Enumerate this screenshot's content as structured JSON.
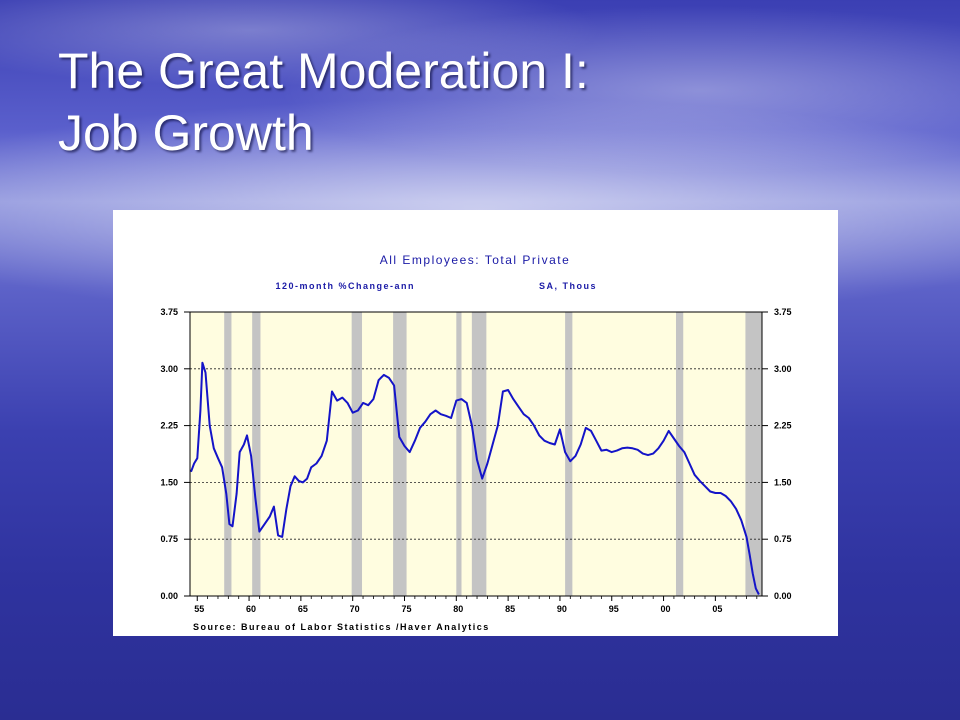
{
  "slide": {
    "title_line1": "The Great Moderation I:",
    "title_line2": "Job Growth"
  },
  "chart_data": {
    "type": "line",
    "title": "All Employees: Total Private",
    "subtitle_measure": "120-month %Change-ann",
    "subtitle_units": "SA, Thous",
    "source": "Source:  Bureau of Labor Statistics /Haver Analytics",
    "xlim": [
      1954.3,
      2009.5
    ],
    "ylim": [
      0.0,
      3.75
    ],
    "x_ticks": [
      "55",
      "60",
      "65",
      "70",
      "75",
      "80",
      "85",
      "90",
      "95",
      "00",
      "05"
    ],
    "x_tick_values": [
      1955,
      1960,
      1965,
      1970,
      1975,
      1980,
      1985,
      1990,
      1995,
      2000,
      2005
    ],
    "y_ticks_left": [
      "3.75",
      "3.00",
      "2.25",
      "1.50",
      "0.75",
      "0.00"
    ],
    "y_ticks_right": [
      "3.75",
      "3.00",
      "2.25",
      "1.50",
      "0.75",
      "0.00"
    ],
    "y_tick_values": [
      3.75,
      3.0,
      2.25,
      1.5,
      0.75,
      0.0
    ],
    "grid": "horizontal dashed at 0.75, 1.50, 2.25, 3.00",
    "colors": {
      "line": "#1414c8",
      "plot_background": "#fffde0",
      "recession": "#c4c4c4"
    },
    "recessions": [
      [
        1957.6,
        1958.3
      ],
      [
        1960.3,
        1961.1
      ],
      [
        1969.9,
        1970.9
      ],
      [
        1973.9,
        1975.2
      ],
      [
        1980.0,
        1980.5
      ],
      [
        1981.5,
        1982.9
      ],
      [
        1990.5,
        1991.2
      ],
      [
        2001.2,
        2001.9
      ],
      [
        2007.9,
        2009.5
      ]
    ],
    "series": [
      {
        "x": [
          1954.4,
          1954.7,
          1955.0,
          1955.3,
          1955.5,
          1955.8,
          1956.2,
          1956.6,
          1957.0,
          1957.4,
          1957.8,
          1958.1,
          1958.4,
          1958.8,
          1959.1,
          1959.5,
          1959.8,
          1960.2,
          1960.6,
          1961.0,
          1961.5,
          1962.0,
          1962.4,
          1962.8,
          1963.2,
          1963.6,
          1964.0,
          1964.4,
          1964.8,
          1965.2,
          1965.6,
          1966.0,
          1966.5,
          1967.0,
          1967.5,
          1968.0,
          1968.5,
          1969.0,
          1969.5,
          1970.0,
          1970.5,
          1971.0,
          1971.5,
          1972.0,
          1972.5,
          1973.0,
          1973.5,
          1974.0,
          1974.5,
          1975.0,
          1975.5,
          1976.0,
          1976.5,
          1977.0,
          1977.5,
          1978.0,
          1978.5,
          1979.0,
          1979.5,
          1980.0,
          1980.5,
          1981.0,
          1981.5,
          1982.0,
          1982.5,
          1983.0,
          1983.5,
          1984.0,
          1984.5,
          1985.0,
          1985.5,
          1986.0,
          1986.5,
          1987.0,
          1987.5,
          1988.0,
          1988.5,
          1989.0,
          1989.5,
          1990.0,
          1990.5,
          1991.0,
          1991.5,
          1992.0,
          1992.5,
          1993.0,
          1993.5,
          1994.0,
          1994.5,
          1995.0,
          1995.5,
          1996.0,
          1996.5,
          1997.0,
          1997.5,
          1998.0,
          1998.5,
          1999.0,
          1999.5,
          2000.0,
          2000.5,
          2001.0,
          2001.5,
          2002.0,
          2002.5,
          2003.0,
          2003.5,
          2004.0,
          2004.5,
          2005.0,
          2005.5,
          2006.0,
          2006.5,
          2007.0,
          2007.5,
          2008.0,
          2008.3,
          2008.6,
          2008.9,
          2009.2
        ],
        "y": [
          1.64,
          1.75,
          1.82,
          2.45,
          3.08,
          2.95,
          2.25,
          1.95,
          1.82,
          1.7,
          1.35,
          0.95,
          0.92,
          1.35,
          1.9,
          2.0,
          2.12,
          1.85,
          1.3,
          0.85,
          0.95,
          1.05,
          1.18,
          0.8,
          0.78,
          1.15,
          1.45,
          1.58,
          1.52,
          1.5,
          1.55,
          1.7,
          1.75,
          1.85,
          2.05,
          2.7,
          2.58,
          2.62,
          2.55,
          2.42,
          2.45,
          2.55,
          2.52,
          2.6,
          2.85,
          2.92,
          2.88,
          2.78,
          2.1,
          1.98,
          1.9,
          2.05,
          2.22,
          2.3,
          2.4,
          2.45,
          2.4,
          2.38,
          2.35,
          2.58,
          2.6,
          2.55,
          2.25,
          1.8,
          1.55,
          1.75,
          2.0,
          2.25,
          2.7,
          2.72,
          2.6,
          2.5,
          2.4,
          2.35,
          2.25,
          2.12,
          2.05,
          2.02,
          2.0,
          2.2,
          1.9,
          1.78,
          1.85,
          2.0,
          2.22,
          2.18,
          2.05,
          1.92,
          1.93,
          1.9,
          1.92,
          1.95,
          1.96,
          1.95,
          1.93,
          1.88,
          1.86,
          1.88,
          1.95,
          2.05,
          2.18,
          2.08,
          1.98,
          1.9,
          1.75,
          1.6,
          1.52,
          1.45,
          1.38,
          1.36,
          1.36,
          1.32,
          1.25,
          1.15,
          1.0,
          0.78,
          0.55,
          0.3,
          0.1,
          0.02
        ]
      }
    ]
  }
}
